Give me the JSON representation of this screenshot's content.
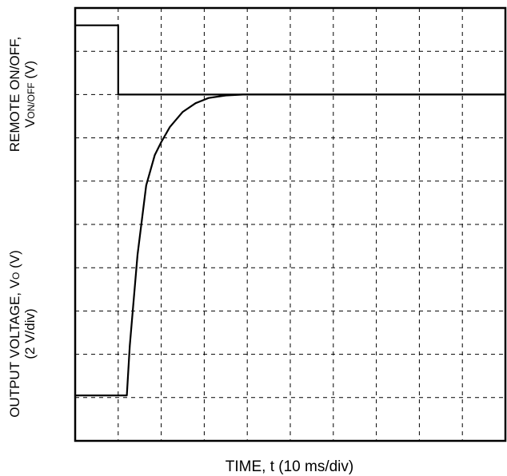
{
  "chart_data": {
    "type": "line",
    "title": "",
    "xlabel": "TIME, t (10 ms/div)",
    "ylabel_top": {
      "line1": "REMOTE ON/OFF,",
      "line2_main": "V",
      "line2_sub": "ON/OFF",
      "line2_unit": " (V)"
    },
    "ylabel_bottom": {
      "line1_main": "OUTPUT VOLTAGE, V",
      "line1_sub": "O",
      "line1_unit": " (V)",
      "line2": "(2 V/div)"
    },
    "grid": "dashed",
    "x_divisions": 10,
    "y_divisions": 10,
    "xlim": [
      0,
      10
    ],
    "ylim": [
      0,
      10
    ],
    "series": [
      {
        "trace": "remote-on-off",
        "x": [
          0,
          1.0,
          1.0,
          10
        ],
        "y": [
          9.6,
          9.6,
          8.0,
          8.0
        ]
      },
      {
        "trace": "output-voltage",
        "x": [
          0,
          1.2,
          1.27,
          1.45,
          1.65,
          1.85,
          2.0,
          2.2,
          2.5,
          2.8,
          3.1,
          3.5,
          3.9,
          4.3,
          5.0,
          10
        ],
        "y": [
          1.05,
          1.05,
          2.2,
          4.3,
          5.9,
          6.6,
          6.9,
          7.25,
          7.6,
          7.8,
          7.92,
          7.98,
          8.0,
          8.0,
          8.0,
          8.0
        ]
      }
    ]
  }
}
